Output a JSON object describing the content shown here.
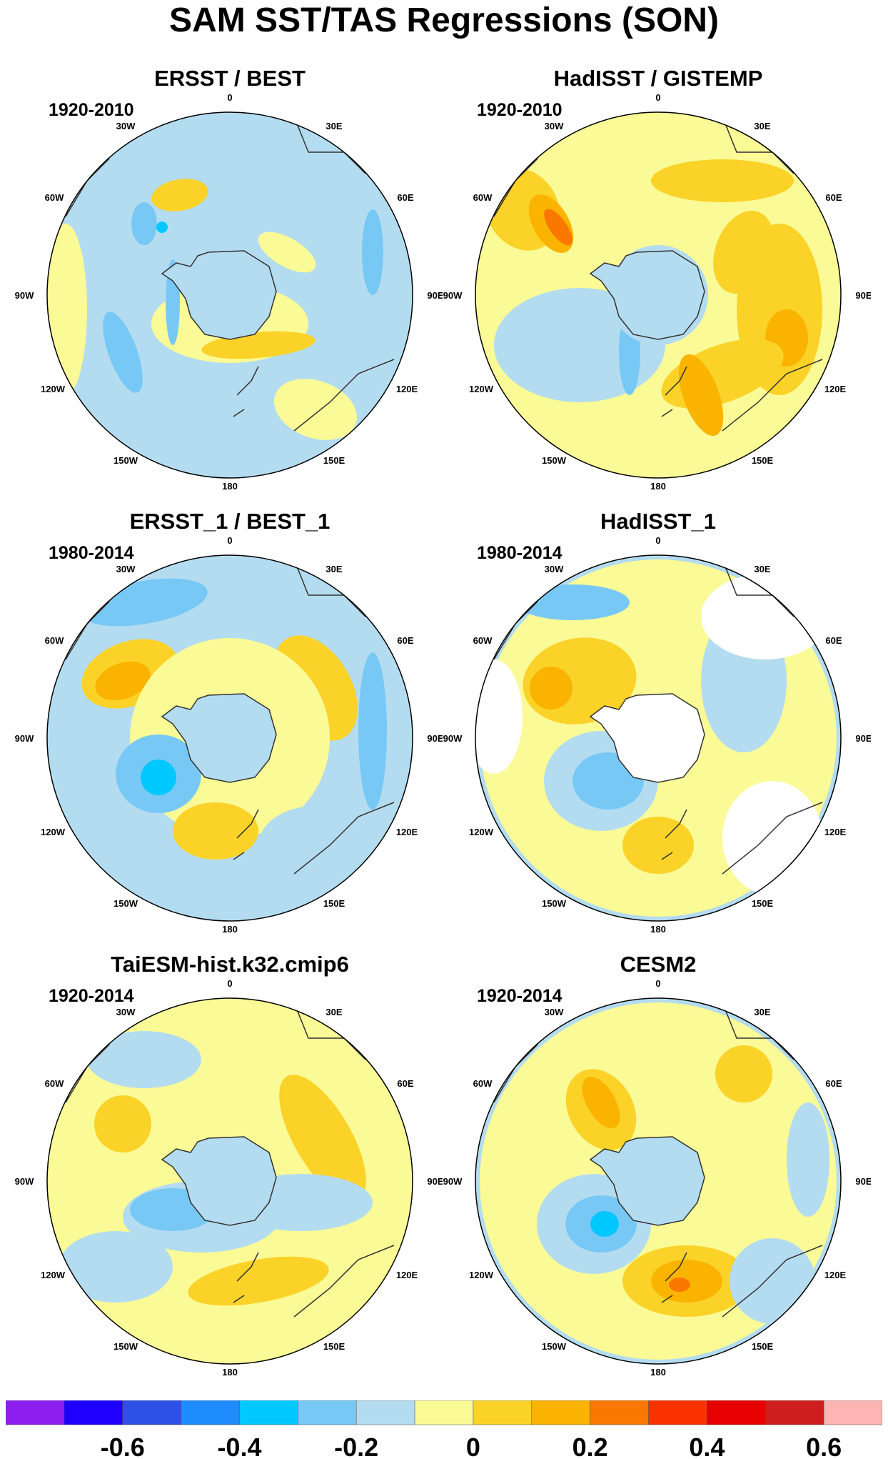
{
  "title": "SAM SST/TAS Regressions (SON)",
  "panels": [
    {
      "title": "ERSST / BEST",
      "period": "1920-2010"
    },
    {
      "title": "HadISST / GISTEMP",
      "period": "1920-2010"
    },
    {
      "title": "ERSST_1 / BEST_1",
      "period": "1980-2014"
    },
    {
      "title": "HadISST_1",
      "period": "1980-2014"
    },
    {
      "title": "TaiESM-hist.k32.cmip6",
      "period": "1920-2014"
    },
    {
      "title": "CESM2",
      "period": "1920-2014"
    }
  ],
  "lon_labels": {
    "top": "0",
    "upper_left": "30W",
    "upper_right": "30E",
    "left_high": "60W",
    "right_high": "60E",
    "left": "90W",
    "right": "90E",
    "left_low": "120W",
    "right_low": "120E",
    "lower_left": "150W",
    "lower_right": "150E",
    "bottom": "180"
  },
  "projection": "south-polar-stereographic",
  "colorbar": {
    "colors": [
      "#8c1ef0",
      "#1e00ff",
      "#2d50e6",
      "#1e8cff",
      "#00c8ff",
      "#78c8f5",
      "#b4dcf0",
      "#fafa96",
      "#fad228",
      "#fab400",
      "#fa7800",
      "#fa3200",
      "#e60000",
      "#cd1e1e",
      "#ffb4b4"
    ],
    "tick_labels": [
      "-0.6",
      "-0.4",
      "-0.2",
      "0",
      "0.2",
      "0.4",
      "0.6"
    ]
  },
  "colors": {
    "light_blue": "#b4dcf0",
    "mid_blue": "#78c8f5",
    "cyan": "#00c8ff",
    "pale_yellow": "#fafa96",
    "yellow": "#fad228",
    "orange": "#fab400",
    "dark_orange": "#fa7800",
    "land": "#ffffff"
  }
}
